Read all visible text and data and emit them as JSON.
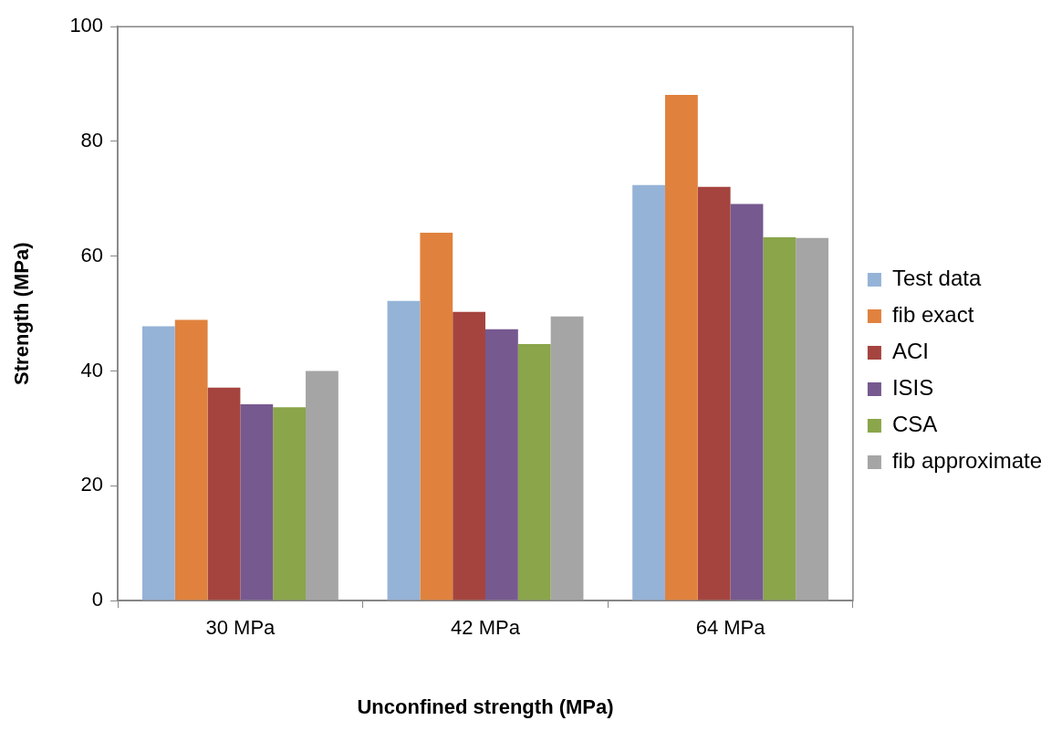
{
  "chart_data": {
    "type": "bar",
    "xlabel": "Unconfined strength (MPa)",
    "ylabel": "Strength (MPa)",
    "categories": [
      "30 MPa",
      "42 MPa",
      "64 MPa"
    ],
    "series": [
      {
        "name": "Test data",
        "color": "#95b3d7",
        "values": [
          47.8,
          52.2,
          72.4
        ]
      },
      {
        "name": "fib exact",
        "color": "#e0823d",
        "values": [
          48.9,
          64.1,
          88.1
        ]
      },
      {
        "name": "ACI",
        "color": "#a5443f",
        "values": [
          37.1,
          50.3,
          72.1
        ]
      },
      {
        "name": "ISIS",
        "color": "#76598f",
        "values": [
          34.2,
          47.3,
          69.1
        ]
      },
      {
        "name": "CSA",
        "color": "#8aa54a",
        "values": [
          33.7,
          44.7,
          63.3
        ]
      },
      {
        "name": "fib approximate",
        "color": "#a5a5a5",
        "values": [
          40.0,
          49.5,
          63.2
        ]
      }
    ],
    "ylim": [
      0,
      100
    ],
    "yticks": [
      0,
      20,
      40,
      60,
      80,
      100
    ],
    "grid": false,
    "legend": "right"
  }
}
